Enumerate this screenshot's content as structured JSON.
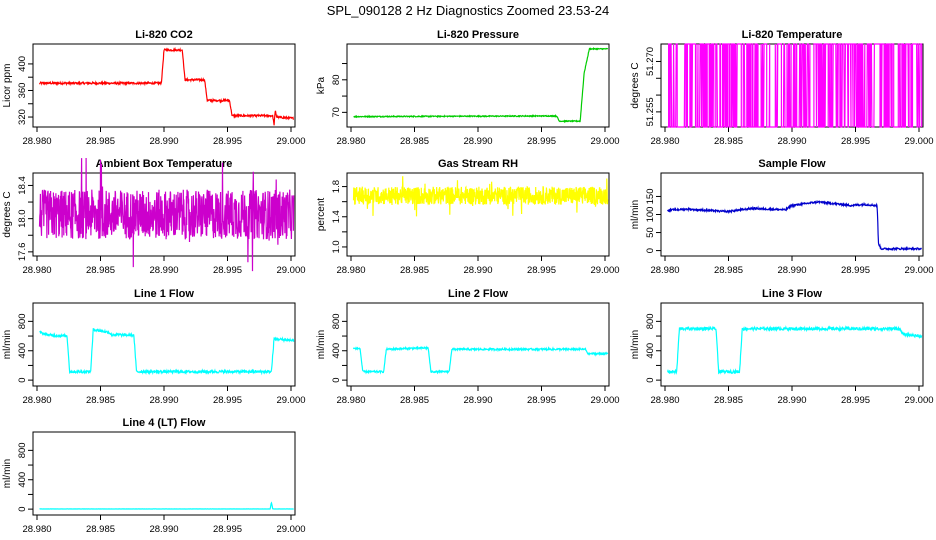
{
  "figure": {
    "title": "SPL_090128  2 Hz Diagnostics Zoomed 23.53-24"
  },
  "chart_data": [
    {
      "type": "line",
      "title": "Li-820 CO2",
      "xlabel": "",
      "ylabel": "Licor ppm",
      "xlim": [
        28.98,
        29.0
      ],
      "ylim": [
        305,
        430
      ],
      "xticks": [
        28.98,
        28.985,
        28.99,
        28.995,
        29.0
      ],
      "xtick_labels": [
        "28.980",
        "28.985",
        "28.990",
        "28.995",
        "29.000"
      ],
      "yticks": [
        320,
        360,
        400
      ],
      "ytick_labels": [
        "320",
        "360",
        "400"
      ],
      "y_minor_ticks": [
        340,
        380
      ],
      "color": "#ff0000",
      "series": [
        {
          "x": [
            28.9805,
            28.9898,
            28.99,
            28.9914,
            28.9916,
            28.9931,
            28.9933,
            28.995,
            28.9952,
            28.9983,
            28.9984,
            28.9985,
            28.9986,
            28.9999
          ],
          "y": [
            371,
            371,
            421,
            421,
            376,
            376,
            345,
            345,
            322,
            322,
            308,
            330,
            320,
            318
          ],
          "noise": 1.5
        }
      ]
    },
    {
      "type": "line",
      "title": "Li-820 Pressure",
      "xlabel": "",
      "ylabel": "kPa",
      "xlim": [
        28.98,
        29.0
      ],
      "ylim": [
        65.5,
        91
      ],
      "xticks": [
        28.98,
        28.985,
        28.99,
        28.995,
        29.0
      ],
      "xtick_labels": [
        "28.980",
        "28.985",
        "28.990",
        "28.995",
        "29.000"
      ],
      "yticks": [
        70,
        80
      ],
      "ytick_labels": [
        "70",
        "80"
      ],
      "y_minor_ticks": [
        75,
        85
      ],
      "color": "#00cc00",
      "series": [
        {
          "x": [
            28.9805,
            28.996,
            28.9962,
            28.9978,
            28.9981,
            28.9985,
            28.9999
          ],
          "y": [
            68.7,
            68.9,
            67.3,
            67.3,
            82,
            89.5,
            89.5
          ],
          "noise": 0.15
        }
      ]
    },
    {
      "type": "line",
      "title": "Li-820 Temperature",
      "xlabel": "",
      "ylabel": "degrees C",
      "xlim": [
        28.98,
        29.0
      ],
      "ylim": [
        51.2505,
        51.2752
      ],
      "xticks": [
        28.98,
        28.985,
        28.99,
        28.995,
        29.0
      ],
      "xtick_labels": [
        "28.980",
        "28.985",
        "28.990",
        "28.995",
        "29.000"
      ],
      "yticks": [
        51.255,
        51.27
      ],
      "ytick_labels": [
        "51.255",
        "51.270"
      ],
      "y_minor_ticks": [
        51.26,
        51.265
      ],
      "color": "#ff00ff",
      "series": [
        {
          "levels": [
            51.2505,
            51.2752
          ],
          "pattern": "toggle"
        }
      ]
    },
    {
      "type": "line",
      "title": "Ambient Box Temperature",
      "xlabel": "",
      "ylabel": "degrees C",
      "xlim": [
        28.98,
        29.0
      ],
      "ylim": [
        17.55,
        18.55
      ],
      "xticks": [
        28.98,
        28.985,
        28.99,
        28.995,
        29.0
      ],
      "xtick_labels": [
        "28.980",
        "28.985",
        "28.990",
        "28.995",
        "29.000"
      ],
      "yticks": [
        17.6,
        18.0,
        18.4
      ],
      "ytick_labels": [
        "17.6",
        "18.0",
        "18.4"
      ],
      "y_minor_ticks": [
        17.8,
        18.2
      ],
      "color": "#cc00cc",
      "series": [
        {
          "mean": 18.05,
          "band": 0.3,
          "pattern": "noise"
        }
      ]
    },
    {
      "type": "line",
      "title": "Gas Stream RH",
      "xlabel": "",
      "ylabel": "percent",
      "xlim": [
        28.98,
        29.0
      ],
      "ylim": [
        0.88,
        1.98
      ],
      "xticks": [
        28.98,
        28.985,
        28.99,
        28.995,
        29.0
      ],
      "xtick_labels": [
        "28.980",
        "28.985",
        "28.990",
        "28.995",
        "29.000"
      ],
      "yticks": [
        1.0,
        1.4,
        1.8
      ],
      "ytick_labels": [
        "1.0",
        "1.4",
        "1.8"
      ],
      "y_minor_ticks": [
        1.2,
        1.6
      ],
      "color": "#ffff00",
      "series": [
        {
          "mean": 1.68,
          "band": 0.12,
          "pattern": "noise"
        }
      ]
    },
    {
      "type": "line",
      "title": "Sample Flow",
      "xlabel": "",
      "ylabel": "ml/min",
      "xlim": [
        28.98,
        29.0
      ],
      "ylim": [
        -15,
        215
      ],
      "xticks": [
        28.98,
        28.985,
        28.99,
        28.995,
        29.0
      ],
      "xtick_labels": [
        "28.980",
        "28.985",
        "28.990",
        "28.995",
        "29.000"
      ],
      "yticks": [
        0,
        50,
        100,
        150
      ],
      "ytick_labels": [
        "0",
        "50",
        "100",
        "150"
      ],
      "color": "#0000cc",
      "series": [
        {
          "x": [
            28.9805,
            28.982,
            28.985,
            28.987,
            28.9895,
            28.99,
            28.992,
            28.9945,
            28.9955,
            28.9965,
            28.9966,
            28.9968,
            28.9999
          ],
          "y": [
            112,
            115,
            108,
            117,
            113,
            125,
            135,
            125,
            128,
            125,
            20,
            5,
            5
          ],
          "noise": 2.5
        }
      ]
    },
    {
      "type": "line",
      "title": "Line 1 Flow",
      "xlabel": "",
      "ylabel": "ml/min",
      "xlim": [
        28.98,
        29.0
      ],
      "ylim": [
        -80,
        1050
      ],
      "xticks": [
        28.98,
        28.985,
        28.99,
        28.995,
        29.0
      ],
      "xtick_labels": [
        "28.980",
        "28.985",
        "28.990",
        "28.995",
        "29.000"
      ],
      "yticks": [
        0,
        400,
        800
      ],
      "ytick_labels": [
        "0",
        "400",
        "800"
      ],
      "y_minor_ticks": [
        200,
        600
      ],
      "color": "#00ffff",
      "series": [
        {
          "x": [
            28.9805,
            28.9813,
            28.9815,
            28.9826,
            28.9828,
            28.9844,
            28.9846,
            28.9858,
            28.986,
            28.9877,
            28.9879,
            28.9982,
            28.9984,
            28.9999
          ],
          "y": [
            650,
            610,
            610,
            600,
            115,
            115,
            690,
            650,
            620,
            610,
            115,
            115,
            560,
            540
          ],
          "noise": 18
        }
      ]
    },
    {
      "type": "line",
      "title": "Line 2 Flow",
      "xlabel": "",
      "ylabel": "ml/min",
      "xlim": [
        28.98,
        29.0
      ],
      "ylim": [
        -80,
        1050
      ],
      "xticks": [
        28.98,
        28.985,
        28.99,
        28.995,
        29.0
      ],
      "xtick_labels": [
        "28.980",
        "28.985",
        "28.990",
        "28.995",
        "29.000"
      ],
      "yticks": [
        0,
        400,
        800
      ],
      "ytick_labels": [
        "0",
        "400",
        "800"
      ],
      "y_minor_ticks": [
        200,
        600
      ],
      "color": "#00ffff",
      "series": [
        {
          "x": [
            28.9805,
            28.981,
            28.9812,
            28.9828,
            28.983,
            28.9862,
            28.9864,
            28.9878,
            28.988,
            28.9982,
            28.9984,
            28.9999
          ],
          "y": [
            430,
            430,
            115,
            115,
            420,
            440,
            115,
            115,
            420,
            420,
            360,
            360
          ],
          "noise": 12
        }
      ]
    },
    {
      "type": "line",
      "title": "Line 3 Flow",
      "xlabel": "",
      "ylabel": "ml/min",
      "xlim": [
        28.98,
        29.0
      ],
      "ylim": [
        -80,
        1050
      ],
      "xticks": [
        28.98,
        28.985,
        28.99,
        28.995,
        29.0
      ],
      "xtick_labels": [
        "28.980",
        "28.985",
        "28.990",
        "28.995",
        "29.000"
      ],
      "yticks": [
        0,
        400,
        800
      ],
      "ytick_labels": [
        "0",
        "400",
        "800"
      ],
      "y_minor_ticks": [
        200,
        600
      ],
      "color": "#00ffff",
      "series": [
        {
          "x": [
            28.9805,
            28.9812,
            28.9814,
            28.9842,
            28.9844,
            28.986,
            28.9862,
            28.988,
            28.9982,
            28.9985,
            28.9999
          ],
          "y": [
            115,
            115,
            700,
            700,
            115,
            115,
            700,
            700,
            700,
            620,
            600
          ],
          "noise": 20
        }
      ]
    },
    {
      "type": "line",
      "title": "Line 4 (LT) Flow",
      "xlabel": "",
      "ylabel": "ml/min",
      "xlim": [
        28.98,
        29.0
      ],
      "ylim": [
        -80,
        1050
      ],
      "xticks": [
        28.98,
        28.985,
        28.99,
        28.995,
        29.0
      ],
      "xtick_labels": [
        "28.980",
        "28.985",
        "28.990",
        "28.995",
        "29.000"
      ],
      "yticks": [
        0,
        400,
        800
      ],
      "ytick_labels": [
        "0",
        "400",
        "800"
      ],
      "y_minor_ticks": [
        200,
        600
      ],
      "color": "#00ffff",
      "series": [
        {
          "x": [
            28.9805,
            28.9981,
            28.9982,
            28.9983,
            28.9985,
            28.9999
          ],
          "y": [
            2,
            2,
            95,
            2,
            2,
            2
          ],
          "noise": 1
        }
      ]
    }
  ]
}
